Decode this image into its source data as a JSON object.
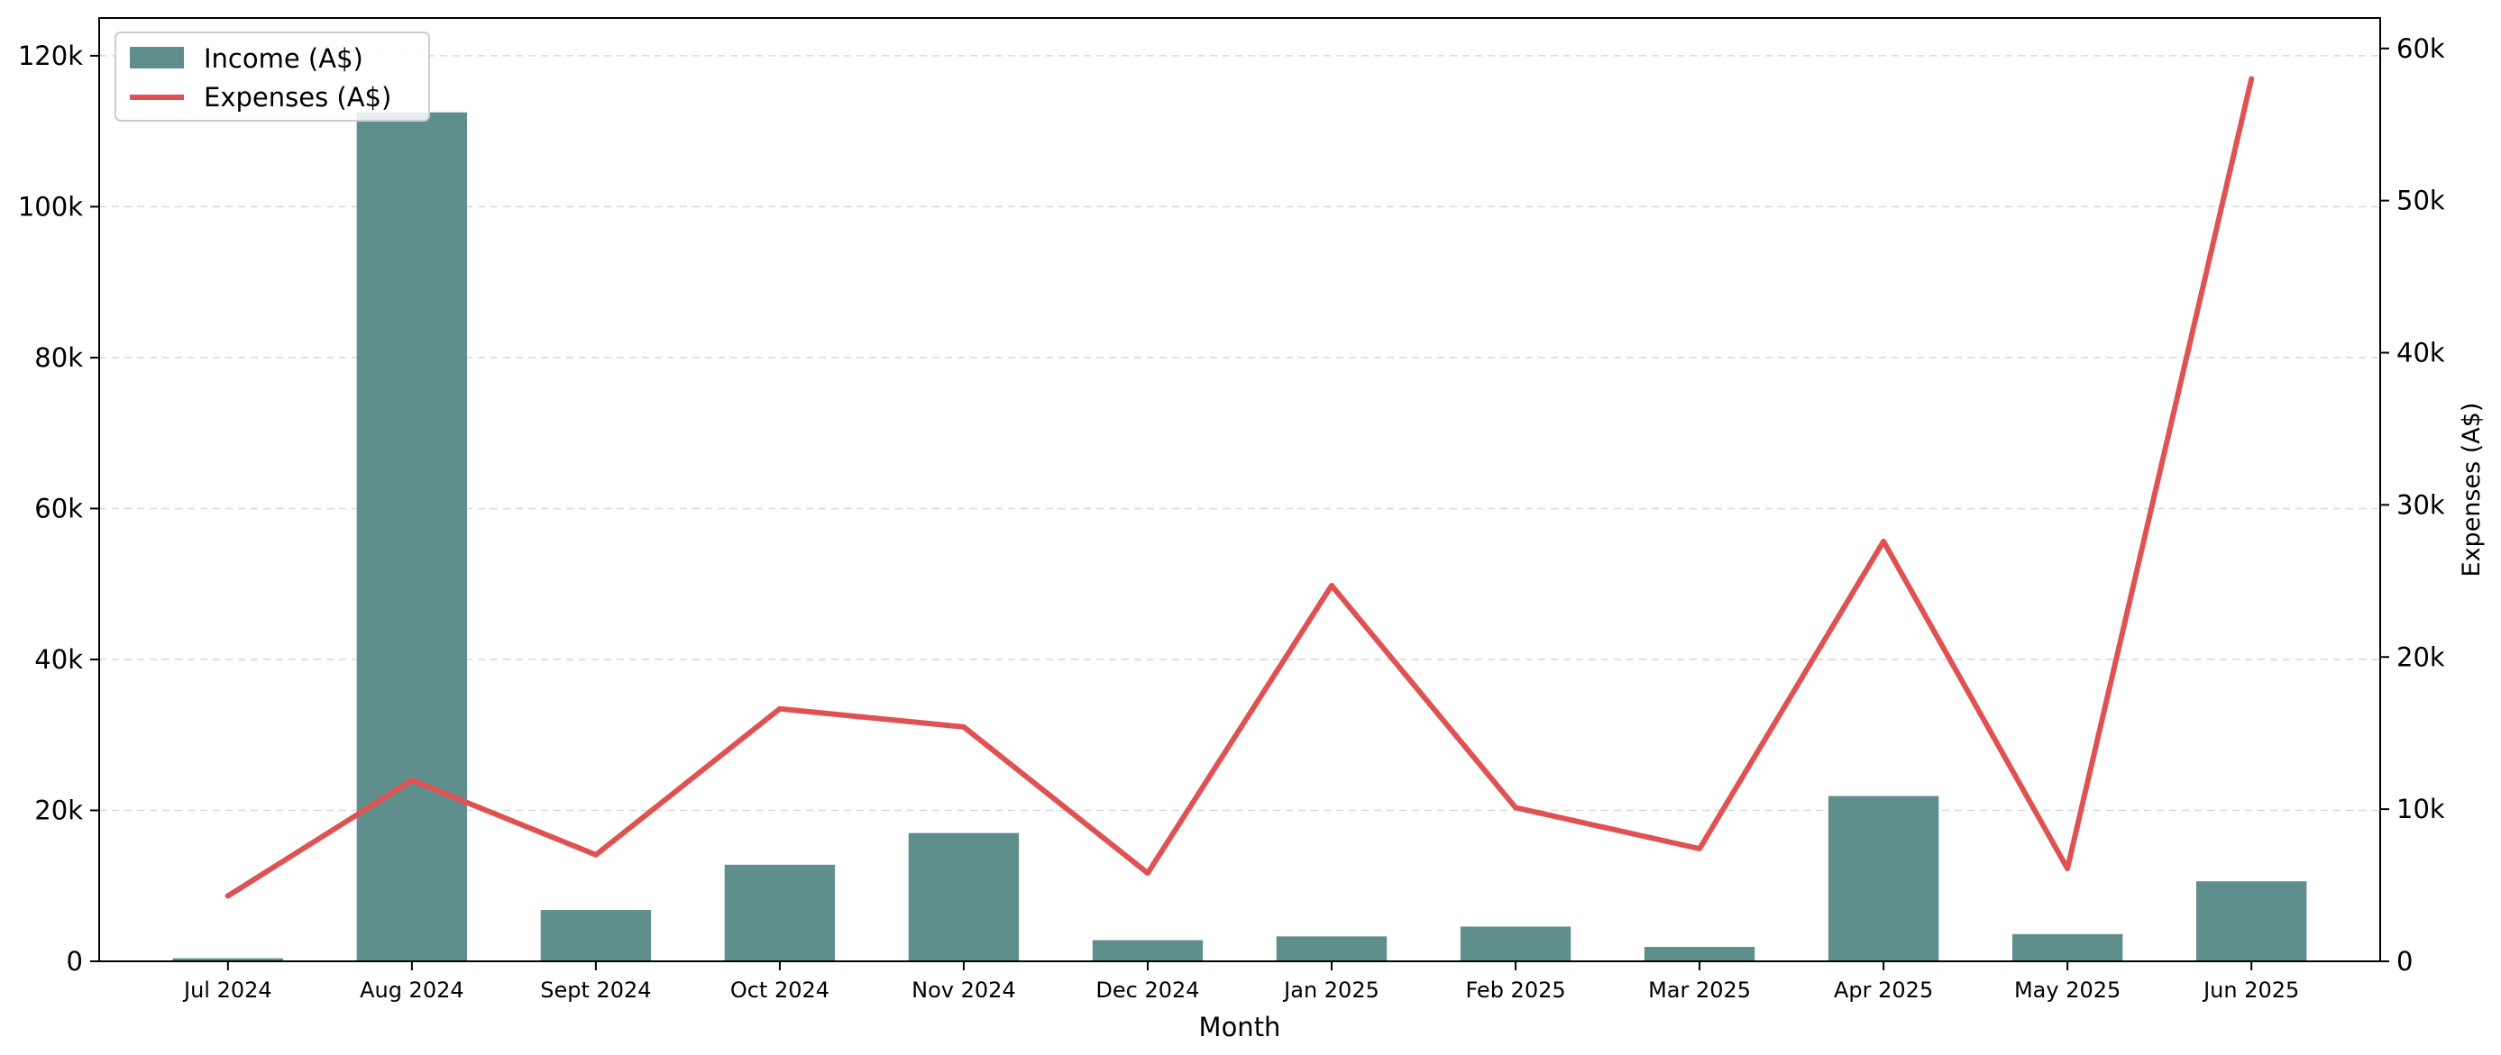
{
  "chart_data": {
    "type": "bar",
    "title": "",
    "xlabel": "Month",
    "ylabel": "",
    "y2label": "Expenses (A$)",
    "categories": [
      "Jul 2024",
      "Aug 2024",
      "Sept 2024",
      "Oct 2024",
      "Nov 2024",
      "Dec 2024",
      "Jan 2025",
      "Feb 2025",
      "Mar 2025",
      "Apr 2025",
      "May 2025",
      "Jun 2025"
    ],
    "series": [
      {
        "name": "Income (A$)",
        "type": "bar",
        "axis": "left",
        "color": "#5f8f8d",
        "values": [
          400,
          112500,
          6800,
          12800,
          17000,
          2800,
          3300,
          4600,
          1900,
          21900,
          3600,
          10600
        ]
      },
      {
        "name": "Expenses (A$)",
        "type": "line",
        "axis": "right",
        "color": "#e05252",
        "values": [
          4300,
          11900,
          7000,
          16600,
          15400,
          5800,
          24700,
          10100,
          7400,
          27600,
          6100,
          58000
        ]
      }
    ],
    "ylim": [
      0,
      125000
    ],
    "y2lim": [
      0,
      62000
    ],
    "yticks": [
      0,
      20000,
      40000,
      60000,
      80000,
      100000,
      120000
    ],
    "yticklabels": [
      "0",
      "20k",
      "40k",
      "60k",
      "80k",
      "100k",
      "120k"
    ],
    "y2ticks": [
      0,
      10000,
      20000,
      30000,
      40000,
      50000,
      60000
    ],
    "y2ticklabels": [
      "0",
      "10k",
      "20k",
      "30k",
      "40k",
      "50k",
      "60k"
    ],
    "grid": "horizontal-dashed",
    "legend_position": "top-left"
  }
}
